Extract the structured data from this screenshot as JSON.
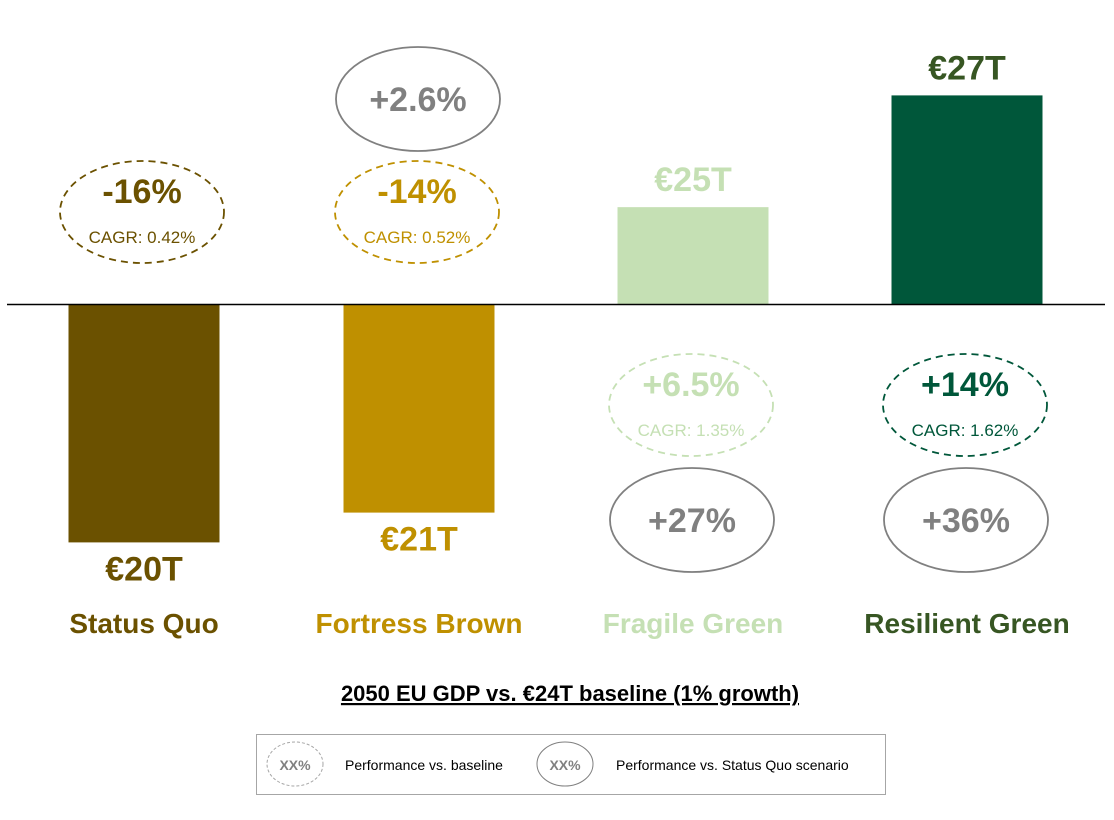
{
  "chart_data": {
    "type": "bar",
    "title": "2050 EU GDP vs. €24T baseline (1% growth)",
    "baseline_label": "€24T",
    "categories": [
      "Status Quo",
      "Fortress Brown",
      "Fragile Green",
      "Resilient Green"
    ],
    "values_pct_vs_baseline": [
      -16,
      -14,
      6.5,
      14
    ],
    "value_labels": [
      "€20T",
      "€21T",
      "€25T",
      "€27T"
    ],
    "baseline_pct_labels": [
      "-16%",
      "-14%",
      "+6.5%",
      "+14%"
    ],
    "cagr_labels": [
      "CAGR: 0.42%",
      "CAGR: 0.52%",
      "CAGR: 1.35%",
      "CAGR: 1.62%"
    ],
    "status_quo_pct_labels": [
      "",
      "+2.6%",
      "+27%",
      "+36%"
    ],
    "colors": [
      "#6b5100",
      "#bf9000",
      "#c5e0b4",
      "#00573a"
    ],
    "category_label_colors": [
      "#6b5100",
      "#bf9000",
      "#c5e0b4",
      "#375623"
    ],
    "value_label_colors": [
      "#6b5100",
      "#bf9000",
      "#c5e0b4",
      "#375623"
    ],
    "comparison_color": "#808080"
  },
  "legend": {
    "symbol_text": "XX%",
    "baseline_label": "Performance vs. baseline",
    "status_quo_label": "Performance vs. Status Quo scenario"
  }
}
